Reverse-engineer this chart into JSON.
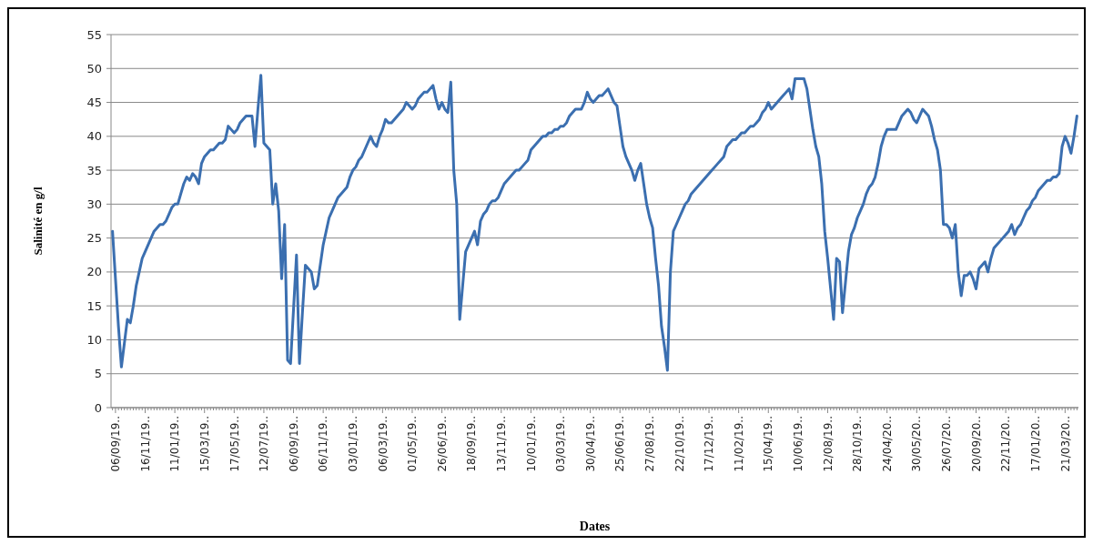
{
  "chart_data": {
    "type": "line",
    "xlabel": "Dates",
    "ylabel": "Salinité en g/l",
    "categories": [
      null,
      "06/09/19..",
      null,
      null,
      null,
      null,
      null,
      null,
      null,
      null,
      null,
      "16/11/19..",
      null,
      null,
      null,
      null,
      null,
      null,
      null,
      null,
      null,
      "11/01/19..",
      null,
      null,
      null,
      null,
      null,
      null,
      null,
      null,
      null,
      "15/03/19..",
      null,
      null,
      null,
      null,
      null,
      null,
      null,
      null,
      null,
      "17/05/19..",
      null,
      null,
      null,
      null,
      null,
      null,
      null,
      null,
      null,
      "12/07/19..",
      null,
      null,
      null,
      null,
      null,
      null,
      null,
      null,
      null,
      "06/09/19..",
      null,
      null,
      null,
      null,
      null,
      null,
      null,
      null,
      null,
      "06/11/19..",
      null,
      null,
      null,
      null,
      null,
      null,
      null,
      null,
      null,
      "03/01/19..",
      null,
      null,
      null,
      null,
      null,
      null,
      null,
      null,
      null,
      "06/03/19..",
      null,
      null,
      null,
      null,
      null,
      null,
      null,
      null,
      null,
      "01/05/19..",
      null,
      null,
      null,
      null,
      null,
      null,
      null,
      null,
      null,
      "26/06/19..",
      null,
      null,
      null,
      null,
      null,
      null,
      null,
      null,
      null,
      "18/09/19..",
      null,
      null,
      null,
      null,
      null,
      null,
      null,
      null,
      null,
      "13/11/19..",
      null,
      null,
      null,
      null,
      null,
      null,
      null,
      null,
      null,
      "10/01/19..",
      null,
      null,
      null,
      null,
      null,
      null,
      null,
      null,
      null,
      "03/03/19..",
      null,
      null,
      null,
      null,
      null,
      null,
      null,
      null,
      null,
      "30/04/19..",
      null,
      null,
      null,
      null,
      null,
      null,
      null,
      null,
      null,
      "25/06/19..",
      null,
      null,
      null,
      null,
      null,
      null,
      null,
      null,
      null,
      "27/08/19..",
      null,
      null,
      null,
      null,
      null,
      null,
      null,
      null,
      null,
      "22/10/19..",
      null,
      null,
      null,
      null,
      null,
      null,
      null,
      null,
      null,
      "17/12/19..",
      null,
      null,
      null,
      null,
      null,
      null,
      null,
      null,
      null,
      "11/02/19..",
      null,
      null,
      null,
      null,
      null,
      null,
      null,
      null,
      null,
      "15/04/19..",
      null,
      null,
      null,
      null,
      null,
      null,
      null,
      null,
      null,
      "10/06/19..",
      null,
      null,
      null,
      null,
      null,
      null,
      null,
      null,
      null,
      "12/08/19..",
      null,
      null,
      null,
      null,
      null,
      null,
      null,
      null,
      null,
      "28/10/19..",
      null,
      null,
      null,
      null,
      null,
      null,
      null,
      null,
      null,
      "24/04/20..",
      null,
      null,
      null,
      null,
      null,
      null,
      null,
      null,
      null,
      "30/05/20..",
      null,
      null,
      null,
      null,
      null,
      null,
      null,
      null,
      null,
      "26/07/20..",
      null,
      null,
      null,
      null,
      null,
      null,
      null,
      null,
      null,
      "20/09/20..",
      null,
      null,
      null,
      null,
      null,
      null,
      null,
      null,
      null,
      "22/11/20..",
      null,
      null,
      null,
      null,
      null,
      null,
      null,
      null,
      null,
      "17/01/20..",
      null,
      null,
      null,
      null,
      null,
      null,
      null,
      null,
      null,
      "21/03/20..",
      null,
      null,
      null,
      null
    ],
    "series": [
      {
        "color": "#3b6fb0",
        "values": [
          26,
          19,
          12,
          6,
          9.5,
          13,
          12.5,
          15,
          18,
          20,
          22,
          23,
          24,
          25,
          26,
          26.5,
          27,
          27,
          27.5,
          28.5,
          29.5,
          30,
          30,
          31.5,
          33,
          34,
          33.5,
          34.5,
          34,
          33,
          36,
          37,
          37.5,
          38,
          38,
          38.5,
          39,
          39,
          39.5,
          41.5,
          41,
          40.5,
          41,
          42,
          42.5,
          43,
          43,
          43,
          38.5,
          44,
          49,
          39,
          38.5,
          38,
          30,
          33,
          29,
          19,
          27,
          7,
          6.5,
          14.5,
          22.5,
          6.5,
          14,
          21,
          20.5,
          20,
          17.5,
          18,
          21,
          24,
          26,
          28,
          29,
          30,
          31,
          31.5,
          32,
          32.5,
          34,
          35,
          35.5,
          36.5,
          37,
          38,
          39,
          40,
          39,
          38.5,
          40,
          41,
          42.5,
          42,
          42,
          42.5,
          43,
          43.5,
          44,
          45,
          44.5,
          44,
          44.5,
          45.5,
          46,
          46.5,
          46.5,
          47,
          47.5,
          45.5,
          44,
          45,
          44,
          43.5,
          48,
          35,
          30,
          13,
          18,
          23,
          24,
          25,
          26,
          24,
          27.5,
          28.5,
          29,
          30,
          30.5,
          30.5,
          31,
          32,
          33,
          33.5,
          34,
          34.5,
          35,
          35,
          35.5,
          36,
          36.5,
          38,
          38.5,
          39,
          39.5,
          40,
          40,
          40.5,
          40.5,
          41,
          41,
          41.5,
          41.5,
          42,
          43,
          43.5,
          44,
          44,
          44,
          45,
          46.5,
          45.5,
          45,
          45.5,
          46,
          46,
          46.5,
          47,
          46,
          45,
          44.5,
          41.5,
          38.5,
          37,
          36,
          35,
          33.5,
          35,
          36,
          33,
          30,
          28,
          26.5,
          22,
          18,
          12,
          9,
          5.5,
          20,
          26,
          27,
          28,
          29,
          30,
          30.5,
          31.5,
          32,
          32.5,
          33,
          33.5,
          34,
          34.5,
          35,
          35.5,
          36,
          36.5,
          37,
          38.5,
          39,
          39.5,
          39.5,
          40,
          40.5,
          40.5,
          41,
          41.5,
          41.5,
          42,
          42.5,
          43.5,
          44,
          45,
          44,
          44.5,
          45,
          45.5,
          46,
          46.5,
          47,
          45.5,
          48.5,
          48.5,
          48.5,
          48.5,
          47,
          44,
          41,
          38.5,
          37,
          33,
          26,
          22,
          17.5,
          13,
          22,
          21.5,
          14,
          18.5,
          23,
          25.5,
          26.5,
          28,
          29,
          30,
          31.5,
          32.5,
          33,
          34,
          36,
          38.5,
          40,
          41,
          41,
          41,
          41,
          42,
          43,
          43.5,
          44,
          43.5,
          42.5,
          42,
          43,
          44,
          43.5,
          43,
          41.5,
          39.5,
          38,
          35,
          27,
          27,
          26.5,
          25,
          27,
          20,
          16.5,
          19.5,
          19.5,
          20,
          19,
          17.5,
          20.5,
          21,
          21.5,
          20,
          22,
          23.5,
          24,
          24.5,
          25,
          25.5,
          26,
          27,
          25.5,
          26.5,
          27,
          28,
          29,
          29.5,
          30.5,
          31,
          32,
          32.5,
          33,
          33.5,
          33.5,
          34,
          34,
          34.5,
          38.5,
          40,
          39,
          37.5,
          40,
          43
        ]
      }
    ],
    "ylim": [
      0,
      55
    ],
    "yticks": [
      0,
      5,
      10,
      15,
      20,
      25,
      30,
      35,
      40,
      45,
      50,
      55
    ],
    "grid": "y",
    "line_style": "solid"
  }
}
